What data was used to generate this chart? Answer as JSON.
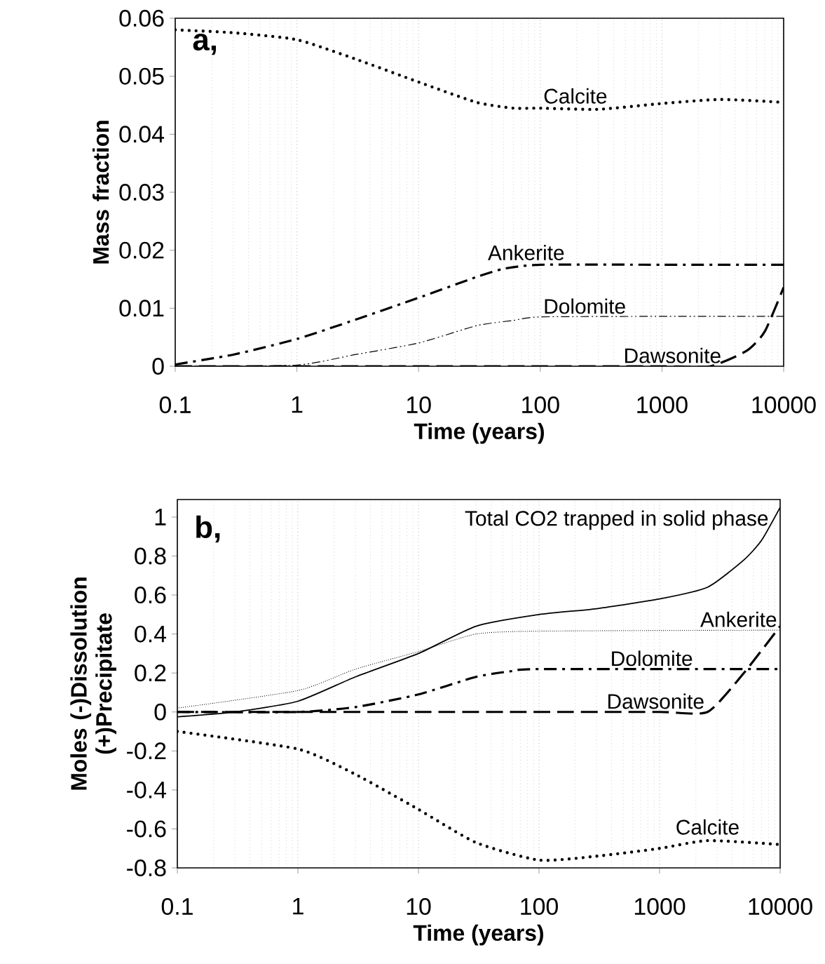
{
  "chart_data": [
    {
      "type": "line",
      "xlabel": "Time (years)",
      "ylabel": "Mass  fraction",
      "log": "x",
      "grid": "x",
      "xlim": [
        0.1,
        10000
      ],
      "xticks": [
        0.1,
        1,
        10,
        100,
        1000,
        10000
      ],
      "ylim": [
        0,
        0.06
      ],
      "yticks": [
        0,
        0.01,
        0.02,
        0.03,
        0.04,
        0.05,
        0.06
      ],
      "annotations": [
        "**a,**"
      ],
      "series": [
        {
          "name": "Calcite",
          "color": "#000000",
          "line_style": "dotted",
          "x": [
            0.1,
            0.3,
            1,
            3,
            10,
            30,
            60,
            100,
            300,
            1000,
            3000,
            10000
          ],
          "values": [
            0.058,
            0.0575,
            0.0563,
            0.053,
            0.049,
            0.0455,
            0.0445,
            0.0445,
            0.0443,
            0.0453,
            0.046,
            0.0455
          ]
        },
        {
          "name": "Ankerite",
          "color": "#000000",
          "line_style": "dashdot",
          "x": [
            0.1,
            0.3,
            1,
            3,
            10,
            30,
            50,
            100,
            1000,
            10000
          ],
          "values": [
            0.0003,
            0.002,
            0.0047,
            0.008,
            0.0118,
            0.0154,
            0.0168,
            0.0175,
            0.0175,
            0.0175
          ]
        },
        {
          "name": "Dolomite",
          "color": "#000000",
          "line_style": "dashdotdot",
          "x": [
            0.1,
            1,
            3,
            10,
            30,
            60,
            100,
            1000,
            10000
          ],
          "values": [
            0,
            0.0002,
            0.002,
            0.004,
            0.007,
            0.0079,
            0.0085,
            0.0086,
            0.0086
          ]
        },
        {
          "name": "Dawsonite",
          "color": "#000000",
          "line_style": "dashed",
          "x": [
            0.1,
            1,
            10,
            100,
            1000,
            2500,
            5000,
            7000,
            10000
          ],
          "values": [
            0,
            0,
            0,
            0,
            0,
            0,
            0.0027,
            0.006,
            0.0136
          ]
        }
      ]
    },
    {
      "type": "line",
      "xlabel": "Time (years)",
      "ylabel": "Moles (-)Dissolution  (+)Precipitate",
      "log": "x",
      "grid": "x",
      "xlim": [
        0.1,
        10000
      ],
      "xticks": [
        0.1,
        1,
        10,
        100,
        1000,
        10000
      ],
      "ylim": [
        -0.8,
        1.09
      ],
      "yticks": [
        -0.8,
        -0.6,
        -0.4,
        -0.2,
        0,
        0.2,
        0.4,
        0.6,
        0.8,
        1
      ],
      "annotations": [
        "**b,**"
      ],
      "series": [
        {
          "name": "Total CO2 trapped in solid phase",
          "color": "#000000",
          "line_style": "solid",
          "x": [
            0.1,
            0.3,
            1,
            3,
            10,
            30,
            100,
            300,
            1000,
            2500,
            5000,
            7000,
            10000
          ],
          "values": [
            -0.025,
            0,
            0.055,
            0.18,
            0.3,
            0.44,
            0.5,
            0.53,
            0.58,
            0.64,
            0.78,
            0.88,
            1.05
          ]
        },
        {
          "name": "Ankerite",
          "color": "#000000",
          "line_style": "densely dotted",
          "x": [
            0.1,
            1,
            3,
            10,
            30,
            100,
            10000
          ],
          "values": [
            0.02,
            0.11,
            0.22,
            0.31,
            0.4,
            0.415,
            0.42
          ]
        },
        {
          "name": "Dolomite",
          "color": "#000000",
          "line_style": "dashdot",
          "x": [
            0.1,
            1,
            3,
            10,
            30,
            60,
            100,
            10000
          ],
          "values": [
            0,
            0,
            0.025,
            0.09,
            0.18,
            0.21,
            0.22,
            0.22
          ]
        },
        {
          "name": "Dawsonite",
          "color": "#000000",
          "line_style": "dashed",
          "x": [
            0.1,
            1,
            10,
            100,
            1000,
            2500,
            5000,
            10000
          ],
          "values": [
            0,
            0,
            0,
            0,
            0,
            0,
            0.2,
            0.44
          ]
        },
        {
          "name": "Calcite",
          "color": "#000000",
          "line_style": "dotted",
          "x": [
            0.1,
            1,
            3,
            10,
            30,
            100,
            300,
            1000,
            2500,
            10000
          ],
          "values": [
            -0.1,
            -0.19,
            -0.32,
            -0.5,
            -0.67,
            -0.76,
            -0.74,
            -0.7,
            -0.66,
            -0.68
          ]
        }
      ]
    }
  ]
}
